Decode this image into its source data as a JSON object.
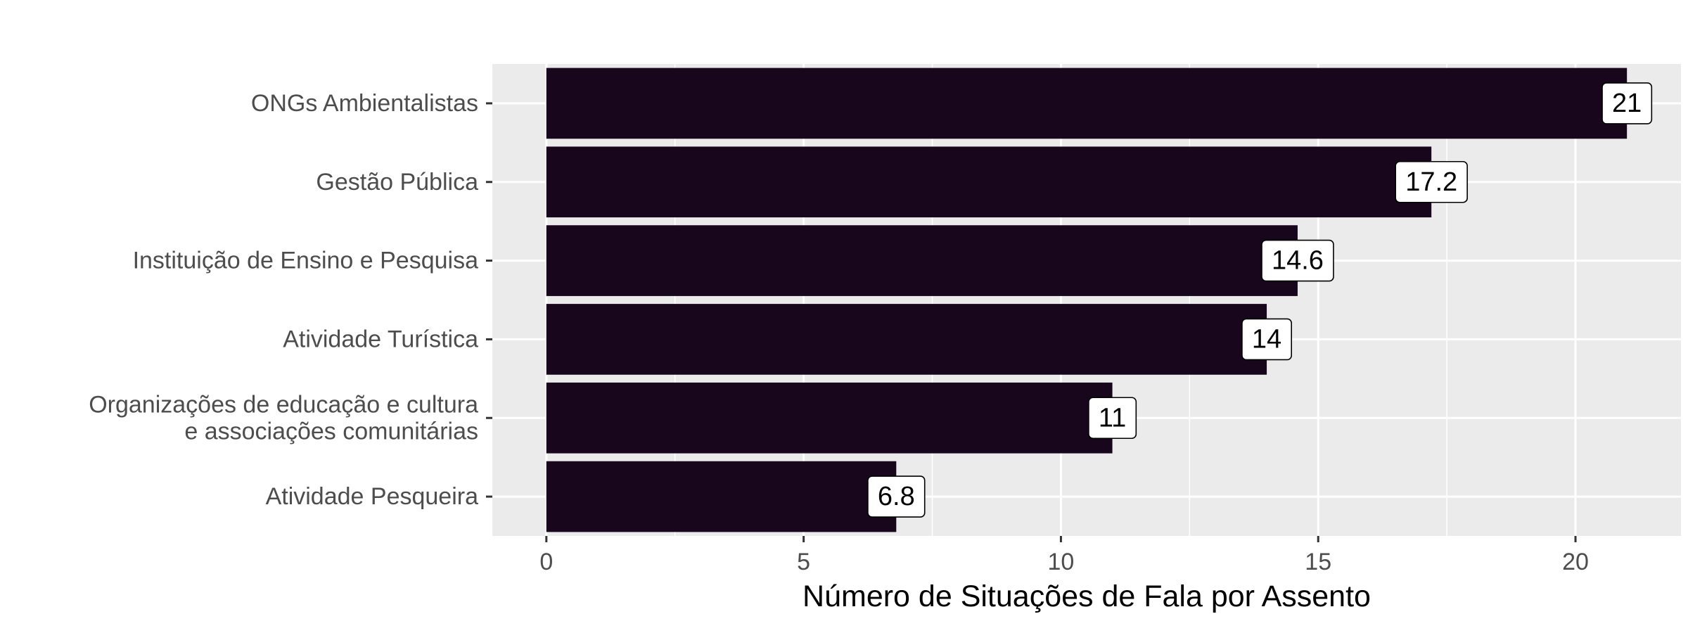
{
  "chart_data": {
    "type": "bar",
    "orientation": "horizontal",
    "categories": [
      "ONGs Ambientalistas",
      "Gestão Pública",
      "Instituição de Ensino e Pesquisa",
      "Atividade Turística",
      "Organizações de educação e cultura\ne associações comunitárias",
      "Atividade Pesqueira"
    ],
    "values": [
      21,
      17.2,
      14.6,
      14,
      11,
      6.8
    ],
    "data_labels": [
      "21",
      "17.2",
      "14.6",
      "14",
      "11",
      "6.8"
    ],
    "title": "",
    "xlabel": "Número de Situações de Fala por Assento",
    "ylabel": "",
    "xlim": [
      -1.05,
      22.05
    ],
    "xticks": [
      0,
      5,
      10,
      15,
      20
    ],
    "xtick_labels": [
      "0",
      "5",
      "10",
      "15",
      "20"
    ],
    "grid": true,
    "legend": "none"
  },
  "colors": {
    "bar": "#18061d",
    "panel": "#ebebeb",
    "grid": "#ffffff",
    "label_box": "#ffffff"
  }
}
